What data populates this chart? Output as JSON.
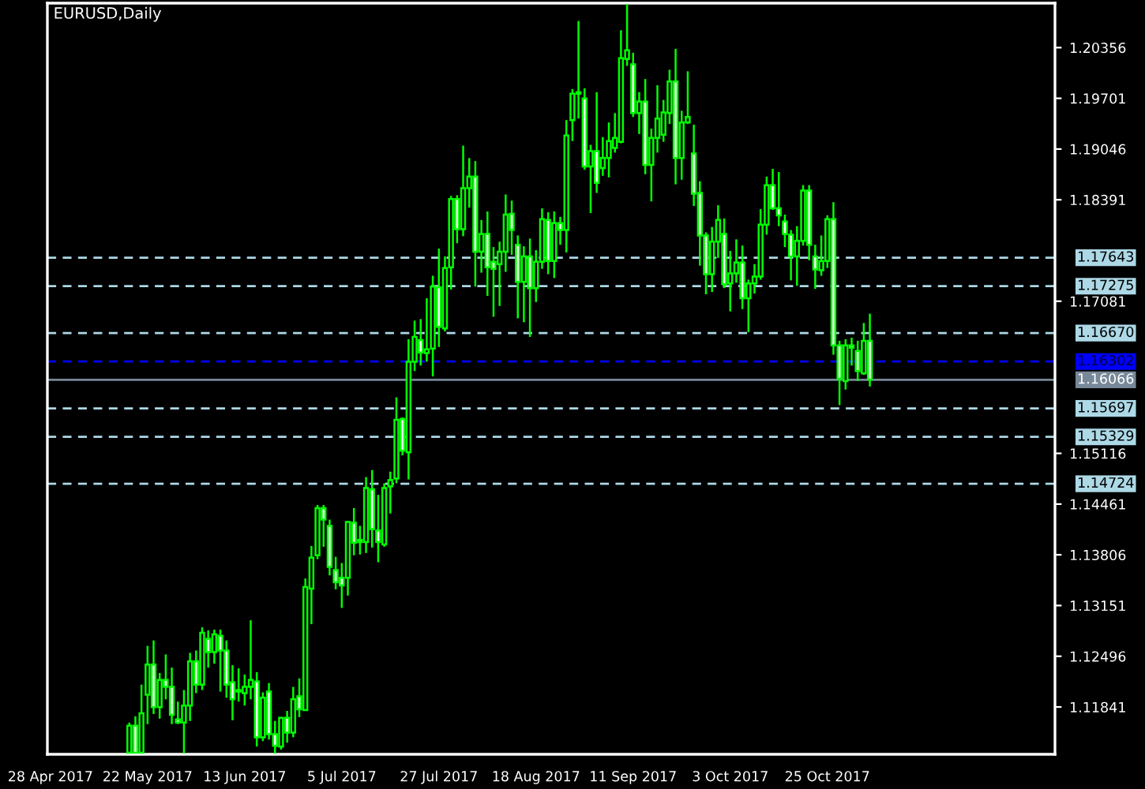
{
  "chart_data": {
    "type": "candlestick",
    "title": "EURUSD,Daily",
    "color": "#00ff00",
    "categories": [
      "28 Apr 2017",
      null,
      null,
      null,
      null,
      null,
      null,
      null,
      null,
      null,
      null,
      null,
      null,
      null,
      null,
      null,
      "22 May 2017",
      null,
      null,
      null,
      null,
      null,
      null,
      null,
      null,
      null,
      null,
      null,
      null,
      null,
      null,
      null,
      "13 Jun 2017",
      null,
      null,
      null,
      null,
      null,
      null,
      null,
      null,
      null,
      null,
      null,
      null,
      null,
      null,
      null,
      "5 Jul 2017",
      null,
      null,
      null,
      null,
      null,
      null,
      null,
      null,
      null,
      null,
      null,
      null,
      null,
      null,
      null,
      "27 Jul 2017",
      null,
      null,
      null,
      null,
      null,
      null,
      null,
      null,
      null,
      null,
      null,
      null,
      null,
      null,
      null,
      "18 Aug 2017",
      null,
      null,
      null,
      null,
      null,
      null,
      null,
      null,
      null,
      null,
      null,
      null,
      null,
      null,
      null,
      "11 Sep 2017",
      null,
      null,
      null,
      null,
      null,
      null,
      null,
      null,
      null,
      null,
      null,
      null,
      null,
      null,
      null,
      "3 Oct 2017",
      null,
      null,
      null,
      null,
      null,
      null,
      null,
      null,
      null,
      null,
      null,
      null,
      null,
      null,
      null,
      "25 Oct 2017",
      null,
      null,
      null,
      null,
      null,
      null,
      null,
      null,
      null,
      null,
      null,
      null,
      null,
      null,
      null,
      null,
      null,
      null,
      null,
      null,
      null,
      null,
      null,
      null,
      null,
      null,
      null,
      null,
      null,
      null,
      null,
      null,
      null,
      null,
      null,
      null,
      null
    ],
    "ohlc": [
      null,
      null,
      null,
      null,
      null,
      null,
      null,
      null,
      null,
      null,
      null,
      null,
      null,
      [
        1.1125,
        1.1164,
        1.1124,
        1.116
      ],
      [
        1.116,
        1.1172,
        1.1124,
        1.1125
      ],
      [
        1.1125,
        1.1213,
        1.1124,
        1.1176
      ],
      [
        1.12,
        1.1263,
        1.1162,
        1.1239
      ],
      [
        1.1239,
        1.127,
        1.1175,
        1.1184
      ],
      [
        1.1184,
        1.1228,
        1.1169,
        1.1219
      ],
      [
        1.1219,
        1.1252,
        1.1194,
        1.121
      ],
      [
        1.121,
        1.1235,
        1.1162,
        1.1174
      ],
      [
        1.1168,
        1.1191,
        1.1162,
        1.1164
      ],
      [
        1.1164,
        1.1206,
        1.1124,
        1.1186
      ],
      [
        1.1186,
        1.1254,
        1.1166,
        1.1243
      ],
      [
        1.1243,
        1.1257,
        1.1202,
        1.1213
      ],
      [
        1.1213,
        1.1287,
        1.1206,
        1.128
      ],
      [
        1.1272,
        1.1283,
        1.1235,
        1.1255
      ],
      [
        1.1255,
        1.1284,
        1.124,
        1.1278
      ],
      [
        1.1276,
        1.1284,
        1.1204,
        1.1257
      ],
      [
        1.1257,
        1.127,
        1.1196,
        1.1213
      ],
      [
        1.1216,
        1.1238,
        1.1167,
        1.1194
      ],
      [
        1.1206,
        1.1234,
        1.1191,
        1.1204
      ],
      [
        1.1202,
        1.1226,
        1.1186,
        1.121
      ],
      [
        1.121,
        1.1296,
        1.1194,
        1.1219
      ],
      [
        1.1217,
        1.1229,
        1.1133,
        1.1145
      ],
      [
        1.1145,
        1.1203,
        1.114,
        1.1196
      ],
      [
        1.1204,
        1.1215,
        1.1142,
        1.1149
      ],
      [
        1.1149,
        1.1166,
        1.1124,
        1.1134
      ],
      [
        1.1133,
        1.117,
        1.1129,
        1.117
      ],
      [
        1.117,
        1.1179,
        1.1138,
        1.1151
      ],
      [
        1.1151,
        1.121,
        1.1145,
        1.1194
      ],
      [
        1.1198,
        1.1221,
        1.1171,
        1.1181
      ],
      [
        1.118,
        1.135,
        1.118,
        1.1339
      ],
      [
        1.1337,
        1.1392,
        1.1291,
        1.1377
      ],
      [
        1.138,
        1.1445,
        1.1375,
        1.1441
      ],
      [
        1.1441,
        1.1445,
        1.1391,
        1.1426
      ],
      [
        1.1418,
        1.1426,
        1.1354,
        1.1365
      ],
      [
        1.1361,
        1.1378,
        1.1336,
        1.1345
      ],
      [
        1.1351,
        1.137,
        1.1312,
        1.1341
      ],
      [
        1.1351,
        1.1424,
        1.1328,
        1.1423
      ],
      [
        1.1422,
        1.1441,
        1.138,
        1.1396
      ],
      [
        1.14,
        1.1418,
        1.1381,
        1.1397
      ],
      [
        1.1397,
        1.1481,
        1.1383,
        1.1467
      ],
      [
        1.1465,
        1.149,
        1.139,
        1.1414
      ],
      [
        1.1412,
        1.1458,
        1.1371,
        1.1397
      ],
      [
        1.1394,
        1.1473,
        1.1391,
        1.1467
      ],
      [
        1.1469,
        1.1488,
        1.1434,
        1.1477
      ],
      [
        1.1479,
        1.1584,
        1.1473,
        1.1555
      ],
      [
        1.1556,
        1.1558,
        1.1509,
        1.1515
      ],
      [
        1.1513,
        1.1659,
        1.1478,
        1.163
      ],
      [
        1.163,
        1.1683,
        1.1618,
        1.1662
      ],
      [
        1.1658,
        1.1685,
        1.1625,
        1.1642
      ],
      [
        1.1641,
        1.1712,
        1.163,
        1.1646
      ],
      [
        1.1647,
        1.1741,
        1.1611,
        1.1727
      ],
      [
        1.1726,
        1.1776,
        1.1649,
        1.1675
      ],
      [
        1.1673,
        1.1766,
        1.1669,
        1.1751
      ],
      [
        1.1752,
        1.1844,
        1.1723,
        1.184
      ],
      [
        1.184,
        1.1845,
        1.1783,
        1.1801
      ],
      [
        1.1801,
        1.1909,
        1.1792,
        1.1854
      ],
      [
        1.1854,
        1.1893,
        1.1829,
        1.1869
      ],
      [
        1.1869,
        1.1889,
        1.1727,
        1.1772
      ],
      [
        1.1772,
        1.1813,
        1.1745,
        1.1795
      ],
      [
        1.1795,
        1.1824,
        1.1715,
        1.1752
      ],
      [
        1.1759,
        1.1778,
        1.1688,
        1.175
      ],
      [
        1.1756,
        1.1785,
        1.1702,
        1.1772
      ],
      [
        1.1772,
        1.1846,
        1.1746,
        1.182
      ],
      [
        1.1821,
        1.1838,
        1.1768,
        1.18
      ],
      [
        1.1781,
        1.1793,
        1.1686,
        1.1733
      ],
      [
        1.1733,
        1.1779,
        1.1681,
        1.1766
      ],
      [
        1.1766,
        1.1789,
        1.1662,
        1.1725
      ],
      [
        1.1725,
        1.1774,
        1.1707,
        1.1759
      ],
      [
        1.1759,
        1.1828,
        1.175,
        1.1814
      ],
      [
        1.1813,
        1.1823,
        1.1743,
        1.176
      ],
      [
        1.176,
        1.1824,
        1.1738,
        1.1809
      ],
      [
        1.1809,
        1.1817,
        1.1781,
        1.18
      ],
      [
        1.18,
        1.1942,
        1.1771,
        1.1922
      ],
      [
        1.1942,
        1.1982,
        1.1915,
        1.1976
      ],
      [
        1.1976,
        1.207,
        1.1944,
        1.1978
      ],
      [
        1.197,
        1.1983,
        1.1878,
        1.1882
      ],
      [
        1.1882,
        1.191,
        1.1822,
        1.1902
      ],
      [
        1.1902,
        1.1978,
        1.1848,
        1.1861
      ],
      [
        1.188,
        1.192,
        1.187,
        1.1893
      ],
      [
        1.1893,
        1.1939,
        1.1868,
        1.1915
      ],
      [
        1.1906,
        1.1951,
        1.19,
        1.1919
      ],
      [
        1.1914,
        1.2058,
        1.1912,
        1.2022
      ],
      [
        1.2021,
        1.2092,
        1.2012,
        1.2032
      ],
      [
        1.2014,
        1.2029,
        1.1946,
        1.1951
      ],
      [
        1.1951,
        1.1978,
        1.1924,
        1.1966
      ],
      [
        1.1966,
        1.1995,
        1.1872,
        1.1884
      ],
      [
        1.1884,
        1.1931,
        1.1837,
        1.1919
      ],
      [
        1.1919,
        1.1987,
        1.19,
        1.1944
      ],
      [
        1.1923,
        1.1968,
        1.1914,
        1.1952
      ],
      [
        1.1951,
        1.2007,
        1.1937,
        1.1992
      ],
      [
        1.1992,
        1.2034,
        1.1859,
        1.1893
      ],
      [
        1.1893,
        1.1954,
        1.1865,
        1.1939
      ],
      [
        1.1939,
        1.2005,
        1.1937,
        1.1946
      ],
      [
        1.1899,
        1.1936,
        1.1831,
        1.1847
      ],
      [
        1.1848,
        1.1863,
        1.1754,
        1.1793
      ],
      [
        1.1793,
        1.1797,
        1.1717,
        1.1743
      ],
      [
        1.1743,
        1.1804,
        1.172,
        1.1785
      ],
      [
        1.1785,
        1.1832,
        1.1764,
        1.1813
      ],
      [
        1.1795,
        1.1815,
        1.1725,
        1.173
      ],
      [
        1.1731,
        1.1773,
        1.1695,
        1.1744
      ],
      [
        1.1744,
        1.1788,
        1.1732,
        1.1758
      ],
      [
        1.1758,
        1.178,
        1.1698,
        1.1712
      ],
      [
        1.1712,
        1.1736,
        1.1668,
        1.1731
      ],
      [
        1.1731,
        1.1756,
        1.1718,
        1.174
      ],
      [
        1.174,
        1.1827,
        1.1736,
        1.1807
      ],
      [
        1.1807,
        1.1869,
        1.1794,
        1.1858
      ],
      [
        1.1858,
        1.1879,
        1.1826,
        1.1828
      ],
      [
        1.1828,
        1.1875,
        1.1805,
        1.1819
      ],
      [
        1.1811,
        1.182,
        1.1778,
        1.1795
      ],
      [
        1.1794,
        1.18,
        1.1735,
        1.1766
      ],
      [
        1.1766,
        1.1805,
        1.1728,
        1.1786
      ],
      [
        1.1786,
        1.1858,
        1.178,
        1.1851
      ],
      [
        1.1851,
        1.1858,
        1.1761,
        1.1781
      ],
      [
        1.1766,
        1.1781,
        1.1724,
        1.1749
      ],
      [
        1.1748,
        1.1793,
        1.1741,
        1.176
      ],
      [
        1.176,
        1.1819,
        1.1751,
        1.1814
      ],
      [
        1.1814,
        1.1836,
        1.1639,
        1.1651
      ],
      [
        1.1651,
        1.1657,
        1.1574,
        1.1608
      ],
      [
        1.1605,
        1.1659,
        1.1594,
        1.1651
      ],
      [
        1.1651,
        1.1661,
        1.1625,
        1.1648
      ],
      [
        1.1644,
        1.1657,
        1.1605,
        1.1618
      ],
      [
        1.1615,
        1.168,
        1.1613,
        1.1657
      ],
      [
        1.1657,
        1.1692,
        1.1598,
        1.1607
      ],
      null,
      null,
      null,
      null,
      null,
      null,
      null,
      null,
      null,
      null,
      null,
      null,
      null,
      null,
      null,
      null,
      null,
      null,
      null,
      null,
      null,
      null,
      null,
      null,
      null,
      null,
      null,
      null,
      null,
      null
    ],
    "ylim": [
      1.1123,
      1.2093
    ],
    "colors": [
      null,
      null,
      null,
      null,
      null,
      null,
      null,
      null,
      null,
      null,
      null,
      null,
      null,
      "#000000",
      "#ffffff",
      "#000000",
      "#000000",
      "#ffffff",
      "#000000",
      "#ffffff",
      "#ffffff",
      "#ffffff",
      "#000000",
      "#000000",
      "#ffffff",
      "#000000",
      "#ffffff",
      "#000000",
      "#ffffff",
      "#ffffff",
      "#ffffff",
      "#ffffff",
      "#000000",
      "#000000",
      "#ffffff",
      "#000000",
      "#ffffff",
      "#ffffff",
      "#000000",
      "#ffffff",
      "#000000",
      "#ffffff",
      "#000000",
      "#000000",
      "#000000",
      "#ffffff",
      "#ffffff",
      "#ffffff",
      "#ffffff",
      "#000000",
      "#ffffff",
      "#ffffff",
      "#000000",
      "#ffffff",
      "#ffffff",
      "#000000",
      "#000000",
      "#000000",
      "#ffffff",
      "#000000",
      "#000000",
      "#ffffff",
      "#000000",
      "#000000",
      "#ffffff",
      "#000000",
      "#000000",
      "#ffffff",
      "#000000",
      "#000000",
      "#ffffff",
      "#000000",
      "#ffffff",
      "#ffffff",
      "#000000",
      "#000000",
      "#ffffff",
      "#ffffff",
      "#000000",
      "#ffffff",
      "#000000",
      "#000000",
      "#ffffff",
      "#000000",
      "#ffffff",
      "#000000",
      "#000000",
      "#000000",
      "#ffffff",
      "#000000",
      "#ffffff",
      "#000000",
      "#000000",
      "#000000",
      "#000000",
      "#000000",
      "#ffffff",
      "#000000",
      "#ffffff",
      "#000000",
      "#000000",
      "#000000",
      "#000000",
      "#ffffff",
      "#000000",
      "#000000",
      "#ffffff",
      "#ffffff",
      "#ffffff",
      "#000000",
      "#000000",
      "#ffffff",
      "#000000",
      "#000000",
      "#ffffff",
      "#000000",
      "#000000",
      "#000000",
      "#000000",
      "#ffffff",
      "#ffffff",
      "#ffffff",
      "#ffffff",
      "#000000",
      "#000000",
      "#ffffff",
      "#ffffff",
      "#000000",
      "#000000",
      "#ffffff",
      "#ffffff",
      "#000000",
      "#ffffff",
      "#ffffff",
      "#000000",
      "#ffffff",
      null,
      null,
      null,
      null,
      null,
      null,
      null,
      null,
      null,
      null,
      null,
      null,
      null,
      null,
      null,
      null,
      null,
      null,
      null,
      null,
      null,
      null,
      null,
      null,
      null,
      null,
      null,
      null,
      null,
      null
    ],
    "yticks": [
      1.20356,
      1.19701,
      1.19046,
      1.18391,
      1.17081,
      1.15116,
      1.14461,
      1.13806,
      1.13151,
      1.12496,
      1.11841
    ],
    "ref_lines": [
      {
        "axis": "y",
        "value": 1.17643,
        "label": "1.17643",
        "color": "#add8e6",
        "line_style": "dashed"
      },
      {
        "axis": "y",
        "value": 1.17275,
        "label": "1.17275",
        "color": "#add8e6",
        "line_style": "dashed"
      },
      {
        "axis": "y",
        "value": 1.1667,
        "label": "1.16670",
        "color": "#add8e6",
        "line_style": "dashed"
      },
      {
        "axis": "y",
        "value": 1.16302,
        "label": "1.16302",
        "color": "#0000ff",
        "line_style": "dashed"
      },
      {
        "axis": "y",
        "value": 1.16066,
        "label": "1.16066",
        "color": "#778899",
        "line_style": "solid"
      },
      {
        "axis": "y",
        "value": 1.15697,
        "label": "1.15697",
        "color": "#add8e6",
        "line_style": "dashed"
      },
      {
        "axis": "y",
        "value": 1.15329,
        "label": "1.15329",
        "color": "#add8e6",
        "line_style": "dashed"
      },
      {
        "axis": "y",
        "value": 1.14724,
        "label": "1.14724",
        "color": "#add8e6",
        "line_style": "dashed"
      }
    ],
    "legend": false
  }
}
